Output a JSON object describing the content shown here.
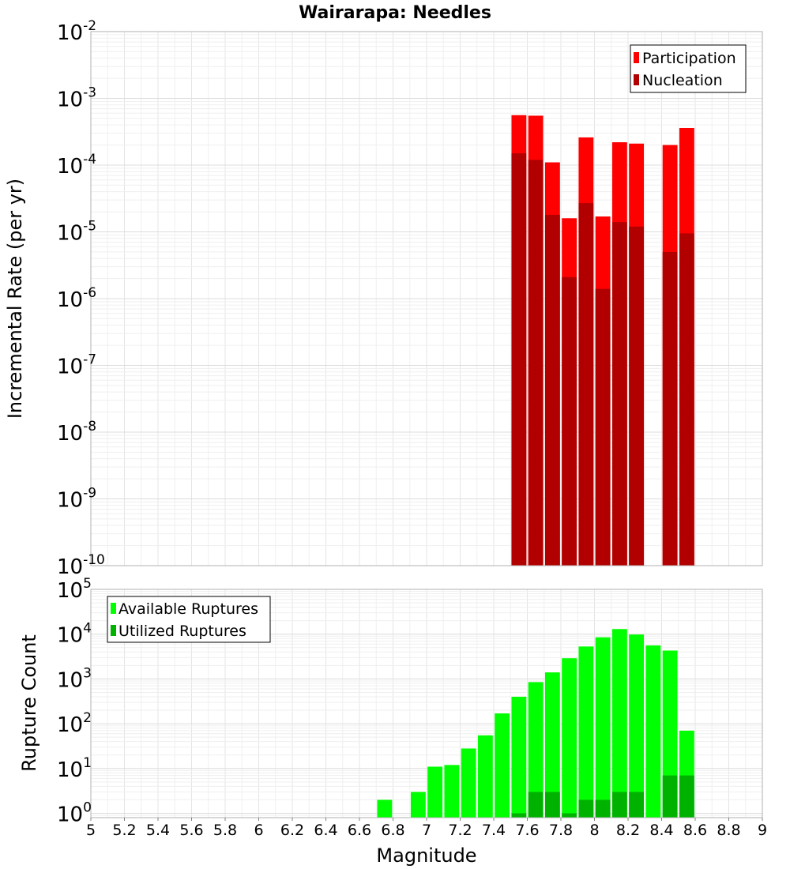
{
  "chart_data": [
    {
      "type": "bar",
      "title": "Wairarapa: Needles",
      "ylabel": "Incremental Rate (per yr)",
      "xlabel": "",
      "xlim": [
        5,
        9
      ],
      "ylim": [
        1e-10,
        0.01
      ],
      "yscale": "log",
      "grid": true,
      "legend_placement": "top-right",
      "bin_width": 0.1,
      "x": [
        7.55,
        7.65,
        7.75,
        7.85,
        7.95,
        8.05,
        8.15,
        8.25,
        8.45,
        8.55
      ],
      "series": [
        {
          "name": "Participation",
          "color": "#ff0000",
          "values": [
            0.00056,
            0.00055,
            0.00011,
            1.6e-05,
            0.00026,
            1.7e-05,
            0.00022,
            0.00021,
            0.0002,
            0.00036
          ]
        },
        {
          "name": "Nucleation",
          "color": "#b20000",
          "values": [
            0.00015,
            0.00012,
            1.8e-05,
            2.1e-06,
            2.7e-05,
            1.4e-06,
            1.4e-05,
            1.2e-05,
            5e-06,
            9.5e-06
          ]
        }
      ],
      "y_ticks": [
        {
          "base": "10",
          "exp": "-10"
        },
        {
          "base": "10",
          "exp": "-9"
        },
        {
          "base": "10",
          "exp": "-8"
        },
        {
          "base": "10",
          "exp": "-7"
        },
        {
          "base": "10",
          "exp": "-6"
        },
        {
          "base": "10",
          "exp": "-5"
        },
        {
          "base": "10",
          "exp": "-4"
        },
        {
          "base": "10",
          "exp": "-3"
        },
        {
          "base": "10",
          "exp": "-2"
        }
      ]
    },
    {
      "type": "bar",
      "title": "",
      "ylabel": "Rupture Count",
      "xlabel": "Magnitude",
      "xlim": [
        5,
        9
      ],
      "ylim": [
        0.8,
        100000
      ],
      "yscale": "log",
      "grid": true,
      "legend_placement": "top-left",
      "bin_width": 0.1,
      "x": [
        6.75,
        6.85,
        6.95,
        7.05,
        7.15,
        7.25,
        7.35,
        7.45,
        7.55,
        7.65,
        7.75,
        7.85,
        7.95,
        8.05,
        8.15,
        8.25,
        8.35,
        8.45,
        8.55
      ],
      "series": [
        {
          "name": "Available Ruptures",
          "color": "#00ff00",
          "values": [
            2,
            0,
            3,
            11,
            12,
            28,
            55,
            170,
            400,
            850,
            1400,
            2900,
            5300,
            8500,
            13000,
            9800,
            5600,
            4300,
            70
          ]
        },
        {
          "name": "Utilized Ruptures",
          "color": "#00b200",
          "values": [
            0,
            0,
            0,
            0,
            0,
            0,
            0,
            0,
            1,
            3,
            3,
            1,
            2,
            2,
            3,
            3,
            0,
            7,
            7
          ]
        }
      ],
      "y_ticks": [
        {
          "base": "10",
          "exp": "0"
        },
        {
          "base": "10",
          "exp": "1"
        },
        {
          "base": "10",
          "exp": "2"
        },
        {
          "base": "10",
          "exp": "3"
        },
        {
          "base": "10",
          "exp": "4"
        },
        {
          "base": "10",
          "exp": "5"
        }
      ],
      "x_ticks": [
        "5",
        "5.2",
        "5.4",
        "5.6",
        "5.8",
        "6",
        "6.2",
        "6.4",
        "6.6",
        "6.8",
        "7",
        "7.2",
        "7.4",
        "7.6",
        "7.8",
        "8",
        "8.2",
        "8.4",
        "8.6",
        "8.8",
        "9"
      ]
    }
  ]
}
